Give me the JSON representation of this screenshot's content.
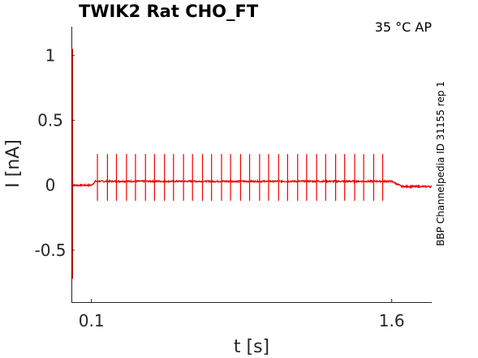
{
  "chart_data": {
    "type": "line",
    "title": "TWIK2  Rat  CHO_FT",
    "annotation": "35 °C  AP",
    "side_label": "BBP Channelpedia ID 31155 rep 1",
    "xlabel": "t [s]",
    "ylabel": "I [nA]",
    "xlim": [
      0.0,
      1.8
    ],
    "ylim": [
      -0.9,
      1.22
    ],
    "x_ticks": [
      {
        "value": 0.1,
        "label": "0.1"
      },
      {
        "value": 1.6,
        "label": "1.6"
      }
    ],
    "y_ticks": [
      {
        "value": 1,
        "label": "1"
      },
      {
        "value": 0.5,
        "label": "0.5"
      },
      {
        "value": 0,
        "label": "0"
      },
      {
        "value": -0.5,
        "label": "-0.5"
      }
    ],
    "grid": false,
    "series": [
      {
        "color": "#ee0000",
        "baseline_before": 0.0,
        "baseline_during": 0.03,
        "baseline_after": -0.01,
        "initial_transient": {
          "t": 0.005,
          "max": 1.05,
          "min": -0.72
        },
        "stimulus_start": 0.1,
        "stimulus_end": 1.6,
        "spike_times": [
          0.13,
          0.18,
          0.225,
          0.275,
          0.32,
          0.37,
          0.415,
          0.465,
          0.51,
          0.56,
          0.605,
          0.655,
          0.7,
          0.75,
          0.795,
          0.845,
          0.89,
          0.94,
          0.985,
          1.035,
          1.08,
          1.13,
          1.175,
          1.225,
          1.27,
          1.32,
          1.365,
          1.415,
          1.46,
          1.51,
          1.555
        ],
        "spike_max": 0.24,
        "spike_min": -0.12
      }
    ]
  }
}
